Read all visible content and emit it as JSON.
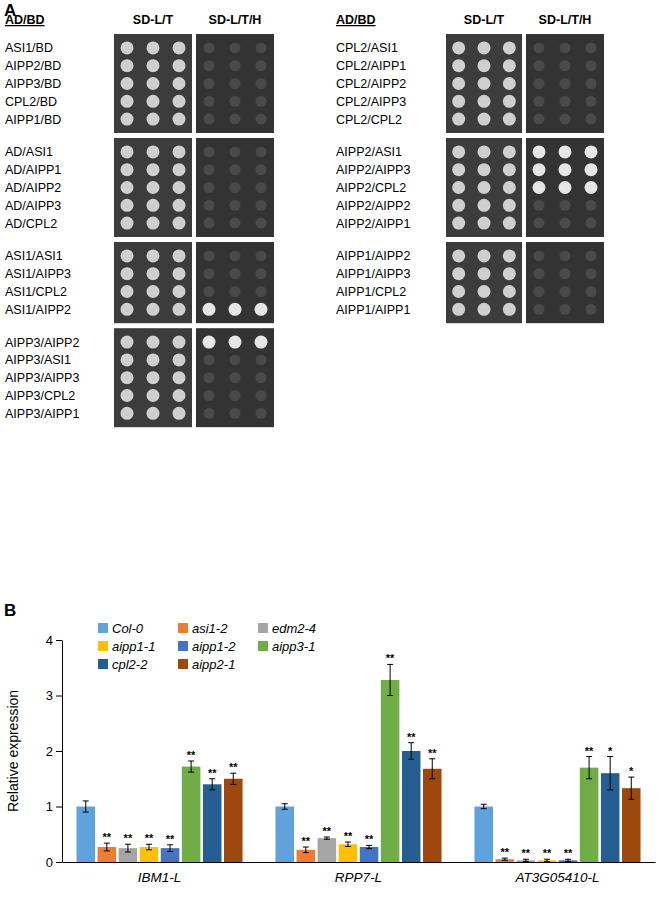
{
  "panel_a": {
    "label": "A",
    "headers": [
      "AD/BD",
      "SD-L/T",
      "SD-L/T/H"
    ],
    "columns": [
      {
        "groups": [
          [
            {
              "label": "ASI1/BD",
              "growth": false
            },
            {
              "label": "AIPP2/BD",
              "growth": false
            },
            {
              "label": "AIPP3/BD",
              "growth": false
            },
            {
              "label": "CPL2/BD",
              "growth": false
            },
            {
              "label": "AIPP1/BD",
              "growth": false
            }
          ],
          [
            {
              "label": "AD/ASI1",
              "growth": false
            },
            {
              "label": "AD/AIPP1",
              "growth": false
            },
            {
              "label": "AD/AIPP2",
              "growth": false
            },
            {
              "label": "AD/AIPP3",
              "growth": false
            },
            {
              "label": "AD/CPL2",
              "growth": false
            }
          ],
          [
            {
              "label": "ASI1/ASI1",
              "growth": false
            },
            {
              "label": "ASI1/AIPP3",
              "growth": false
            },
            {
              "label": "ASI1/CPL2",
              "growth": false
            },
            {
              "label": "ASI1/AIPP2",
              "growth": true
            }
          ],
          [
            {
              "label": "AIPP3/AIPP2",
              "growth": true
            },
            {
              "label": "AIPP3/ASI1",
              "growth": false
            },
            {
              "label": "AIPP3/AIPP3",
              "growth": false
            },
            {
              "label": "AIPP3/CPL2",
              "growth": false
            },
            {
              "label": "AIPP3/AIPP1",
              "growth": false
            }
          ]
        ]
      },
      {
        "groups": [
          [
            {
              "label": "CPL2/ASI1",
              "growth": false
            },
            {
              "label": "CPL2/AIPP1",
              "growth": false
            },
            {
              "label": "CPL2/AIPP2",
              "growth": false
            },
            {
              "label": "CPL2/AIPP3",
              "growth": false
            },
            {
              "label": "CPL2/CPL2",
              "growth": false
            }
          ],
          [
            {
              "label": "AIPP2/ASI1",
              "growth": true
            },
            {
              "label": "AIPP2/AIPP3",
              "growth": true
            },
            {
              "label": "AIPP2/CPL2",
              "growth": true
            },
            {
              "label": "AIPP2/AIPP2",
              "growth": false
            },
            {
              "label": "AIPP2/AIPP1",
              "growth": false
            }
          ],
          [
            {
              "label": "AIPP1/AIPP2",
              "growth": false
            },
            {
              "label": "AIPP1/AIPP3",
              "growth": false
            },
            {
              "label": "AIPP1/CPL2",
              "growth": false
            },
            {
              "label": "AIPP1/AIPP1",
              "growth": false
            }
          ]
        ]
      }
    ]
  },
  "chart_data": {
    "type": "bar",
    "panel_label": "B",
    "y_label": "Relative expression",
    "categories": [
      "IBM1-L",
      "RPP7-L",
      "AT3G05410-L"
    ],
    "ylim": [
      0,
      4
    ],
    "yticks": [
      0,
      1,
      2,
      3,
      4
    ],
    "legend": "top-left",
    "series": [
      {
        "name": "Col-0",
        "color": "#5fa2dd",
        "values": [
          1.0,
          1.0,
          1.0
        ],
        "errors": [
          0.1,
          0.05,
          0.04
        ],
        "significance": [
          null,
          null,
          null
        ]
      },
      {
        "name": "asi1-2",
        "color": "#ed7d31",
        "values": [
          0.27,
          0.22,
          0.05
        ],
        "errors": [
          0.07,
          0.05,
          0.02
        ],
        "significance": [
          "**",
          "**",
          "**"
        ]
      },
      {
        "name": "edm2-4",
        "color": "#a5a5a5",
        "values": [
          0.25,
          0.43,
          0.03
        ],
        "errors": [
          0.07,
          0.02,
          0.02
        ],
        "significance": [
          "**",
          "**",
          "**"
        ]
      },
      {
        "name": "aipp1-1",
        "color": "#ffc000",
        "values": [
          0.27,
          0.32,
          0.03
        ],
        "errors": [
          0.05,
          0.04,
          0.02
        ],
        "significance": [
          "**",
          "**",
          "**"
        ]
      },
      {
        "name": "aipp1-2",
        "color": "#4472c4",
        "values": [
          0.25,
          0.27,
          0.03
        ],
        "errors": [
          0.06,
          0.03,
          0.02
        ],
        "significance": [
          "**",
          "**",
          "**"
        ]
      },
      {
        "name": "aipp3-1",
        "color": "#70ad47",
        "values": [
          1.72,
          3.28,
          1.7
        ],
        "errors": [
          0.1,
          0.28,
          0.2
        ],
        "significance": [
          "**",
          "**",
          "**"
        ]
      },
      {
        "name": "cpl2-2",
        "color": "#255e91",
        "values": [
          1.4,
          2.0,
          1.6
        ],
        "errors": [
          0.1,
          0.15,
          0.3
        ],
        "significance": [
          "**",
          "**",
          "*"
        ]
      },
      {
        "name": "aipp2-1",
        "color": "#9e480e",
        "values": [
          1.5,
          1.68,
          1.33
        ],
        "errors": [
          0.1,
          0.18,
          0.2
        ],
        "significance": [
          "**",
          "**",
          "*"
        ]
      }
    ]
  }
}
